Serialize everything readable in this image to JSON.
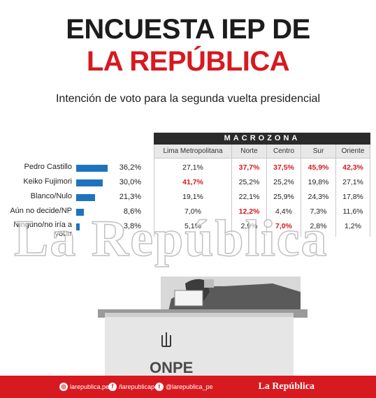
{
  "header": {
    "title_line1": "ENCUESTA IEP DE",
    "title_line2": "LA REPÚBLICA",
    "subtitle": "Intención de voto para la segunda vuelta presidencial"
  },
  "colors": {
    "brand_red": "#d71920",
    "bar_blue": "#1e73be",
    "dark": "#2b2b2b"
  },
  "chart_data": {
    "type": "bar",
    "orientation": "horizontal",
    "categories": [
      "Pedro Castillo",
      "Keiko Fujimori",
      "Blanco/Nulo",
      "Aún no decide/NP",
      "Ninguno/no iría a votar"
    ],
    "values": [
      36.2,
      30.0,
      21.3,
      8.6,
      3.8
    ],
    "value_labels": [
      "36,2%",
      "30,0%",
      "21,3%",
      "8,6%",
      "3,8%"
    ],
    "title": "",
    "xlabel": "",
    "ylabel": "",
    "xlim": [
      0,
      40
    ],
    "grid": false
  },
  "table": {
    "group_header": "MACROZONA",
    "columns": [
      "Lima Metropolitana",
      "Norte",
      "Centro",
      "Sur",
      "Oriente"
    ],
    "rows": [
      [
        "27,1%",
        "37,7%",
        "37,5%",
        "45,9%",
        "42,3%"
      ],
      [
        "41,7%",
        "25,2%",
        "25,2%",
        "19,8%",
        "27,1%"
      ],
      [
        "19,1%",
        "22,1%",
        "25,9%",
        "24,3%",
        "17,8%"
      ],
      [
        "7,0%",
        "12,2%",
        "4,4%",
        "7,3%",
        "11,6%"
      ],
      [
        "5,1%",
        "2,9%",
        "7,0%",
        "2,8%",
        "1,2%"
      ]
    ],
    "highlighted": [
      [
        false,
        true,
        true,
        true,
        true
      ],
      [
        true,
        false,
        false,
        false,
        false
      ],
      [
        false,
        false,
        false,
        false,
        false
      ],
      [
        false,
        true,
        false,
        false,
        false
      ],
      [
        false,
        false,
        true,
        false,
        false
      ]
    ]
  },
  "watermark": "La República",
  "ballot": {
    "label": "ONPE"
  },
  "footer": {
    "instagram": "larepublica.pe",
    "facebook": "/larepublicape",
    "twitter": "@larepublica_pe",
    "brand": "La República",
    "icons": [
      "instagram-icon",
      "facebook-icon",
      "twitter-icon"
    ]
  }
}
